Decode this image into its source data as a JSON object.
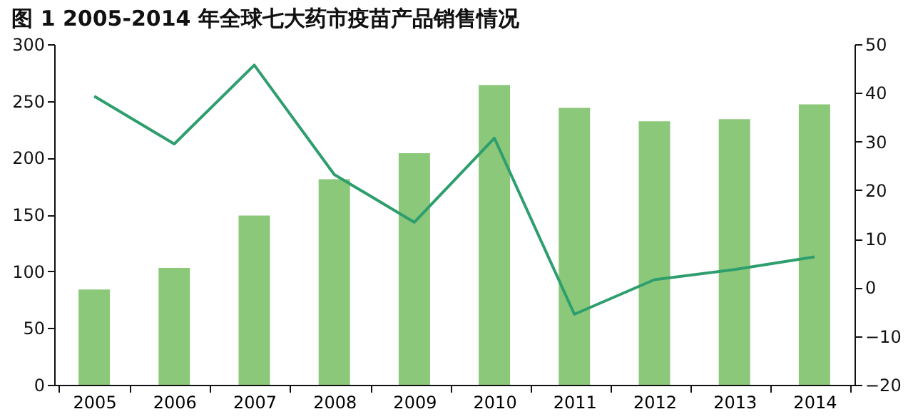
{
  "chart_data": {
    "type": "bar",
    "title": "图 1   2005-2014 年全球七大药市疫苗产品销售情况",
    "categories": [
      "2005",
      "2006",
      "2007",
      "2008",
      "2009",
      "2010",
      "2011",
      "2012",
      "2013",
      "2014"
    ],
    "series": [
      {
        "color": "#8cc87a",
        "values": [
          84,
          103,
          149,
          181,
          204,
          264,
          244,
          232,
          234,
          247
        ]
      },
      {
        "type": "line",
        "axis": "y2",
        "color": "#2e9e6e",
        "values": [
          39.3,
          29.5,
          45.7,
          23.2,
          13.4,
          30.7,
          -5.5,
          1.6,
          3.7,
          6.3
        ]
      }
    ],
    "ylim": [
      0,
      300
    ],
    "yticks": [
      0,
      50,
      100,
      150,
      200,
      250,
      300
    ],
    "y2lim": [
      -20,
      50
    ],
    "y2ticks": [
      -20,
      -10,
      0,
      10,
      20,
      30,
      40,
      50
    ]
  }
}
